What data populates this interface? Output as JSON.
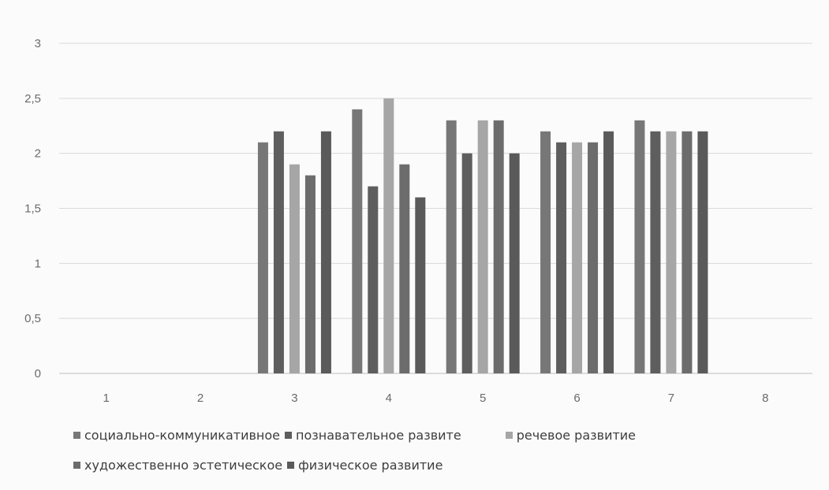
{
  "chart_data": {
    "type": "bar",
    "title": "",
    "xlabel": "",
    "ylabel": "",
    "ylim": [
      0,
      3
    ],
    "yticks": [
      "0",
      "0,5",
      "1",
      "1,5",
      "2",
      "2,5",
      "3"
    ],
    "grid": true,
    "legend_position": "bottom",
    "categories": [
      "1",
      "2",
      "3",
      "4",
      "5",
      "6",
      "7",
      "8"
    ],
    "series": [
      {
        "name": "социально-коммуникативное",
        "color": "#777777",
        "values": [
          null,
          null,
          2.1,
          2.4,
          2.3,
          2.2,
          2.3,
          null
        ]
      },
      {
        "name": "познавательное развите",
        "color": "#5e5e5e",
        "values": [
          null,
          null,
          2.2,
          1.7,
          2.0,
          2.1,
          2.2,
          null
        ]
      },
      {
        "name": "речевое развитие",
        "color": "#a6a6a6",
        "values": [
          null,
          null,
          1.9,
          2.5,
          2.3,
          2.1,
          2.2,
          null
        ]
      },
      {
        "name": "художественно эстетическое",
        "color": "#6c6c6c",
        "values": [
          null,
          null,
          1.8,
          1.9,
          2.3,
          2.1,
          2.2,
          null
        ]
      },
      {
        "name": "физическое развитие",
        "color": "#5a5a5a",
        "values": [
          null,
          null,
          2.2,
          1.6,
          2.0,
          2.2,
          2.2,
          null
        ]
      }
    ]
  }
}
